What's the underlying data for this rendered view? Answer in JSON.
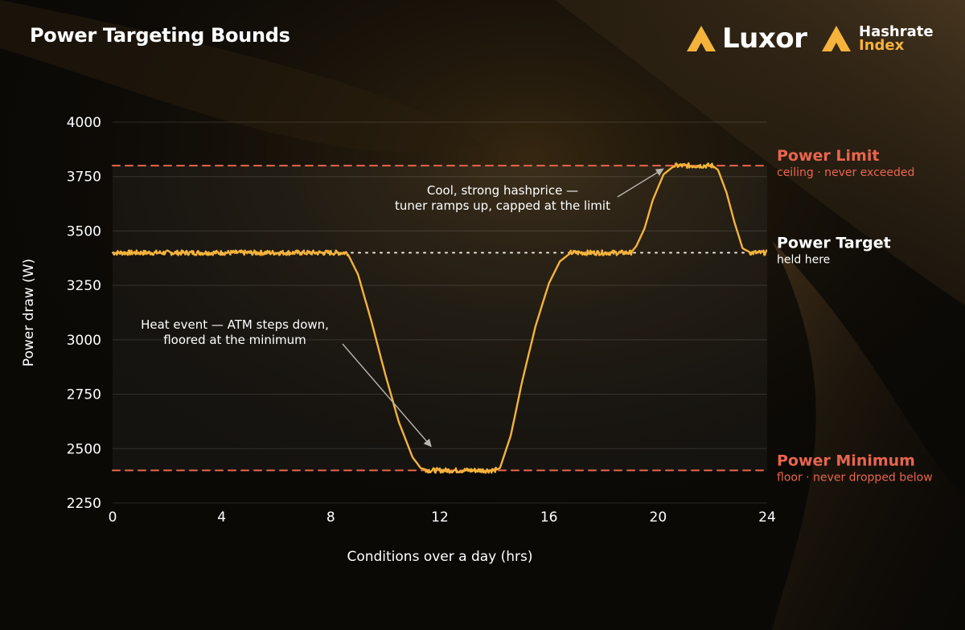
{
  "header": {
    "title": "Power Targeting Bounds",
    "brand_luxor": "Luxor",
    "brand_hashrate_line1": "Hashrate",
    "brand_hashrate_line2": "Index"
  },
  "colors": {
    "accent": "#f5b33b",
    "bound_line": "#e8654f",
    "target_line": "#e9e4da",
    "background": "#0b0906"
  },
  "chart_data": {
    "type": "line",
    "title": "Power Targeting Bounds",
    "xlabel": "Conditions over a day (hrs)",
    "ylabel": "Power draw (W)",
    "xlim": [
      0,
      24
    ],
    "ylim": [
      2250,
      4000
    ],
    "xticks": [
      0,
      4,
      8,
      12,
      16,
      20,
      24
    ],
    "yticks": [
      2250,
      2500,
      2750,
      3000,
      3250,
      3500,
      3750,
      4000
    ],
    "grid": "horizontal",
    "series": [
      {
        "x": [
          0,
          8.6,
          9.0,
          9.5,
          10.0,
          10.5,
          11.0,
          11.3,
          11.6,
          12.0,
          13.0,
          14.0,
          14.2,
          14.6,
          15.0,
          15.5,
          16.0,
          16.4,
          16.8,
          19.0,
          19.2,
          19.5,
          19.8,
          20.2,
          20.6,
          22.0,
          22.2,
          22.5,
          22.8,
          23.1,
          23.4,
          24.0
        ],
        "y": [
          3400,
          3400,
          3300,
          3080,
          2840,
          2620,
          2460,
          2410,
          2400,
          2400,
          2400,
          2400,
          2410,
          2560,
          2800,
          3060,
          3260,
          3360,
          3400,
          3400,
          3430,
          3510,
          3640,
          3760,
          3800,
          3800,
          3780,
          3680,
          3540,
          3420,
          3400,
          3400
        ]
      }
    ],
    "reference_lines": [
      {
        "name": "Power Limit",
        "y": 3800,
        "style": "dashed",
        "sublabel": "ceiling · never exceeded"
      },
      {
        "name": "Power Target",
        "y": 3400,
        "style": "dotted",
        "sublabel": "held here"
      },
      {
        "name": "Power Minimum",
        "y": 2400,
        "style": "dashed",
        "sublabel": "floor · never dropped below"
      }
    ],
    "annotations": [
      {
        "lines": [
          "Cool, strong hashprice —",
          "tuner ramps up, capped at the limit"
        ],
        "point": [
          20.25,
          3800
        ]
      },
      {
        "lines": [
          "Heat event — ATM steps down,",
          "floored at the minimum"
        ],
        "point": [
          11.65,
          2510
        ]
      }
    ]
  }
}
